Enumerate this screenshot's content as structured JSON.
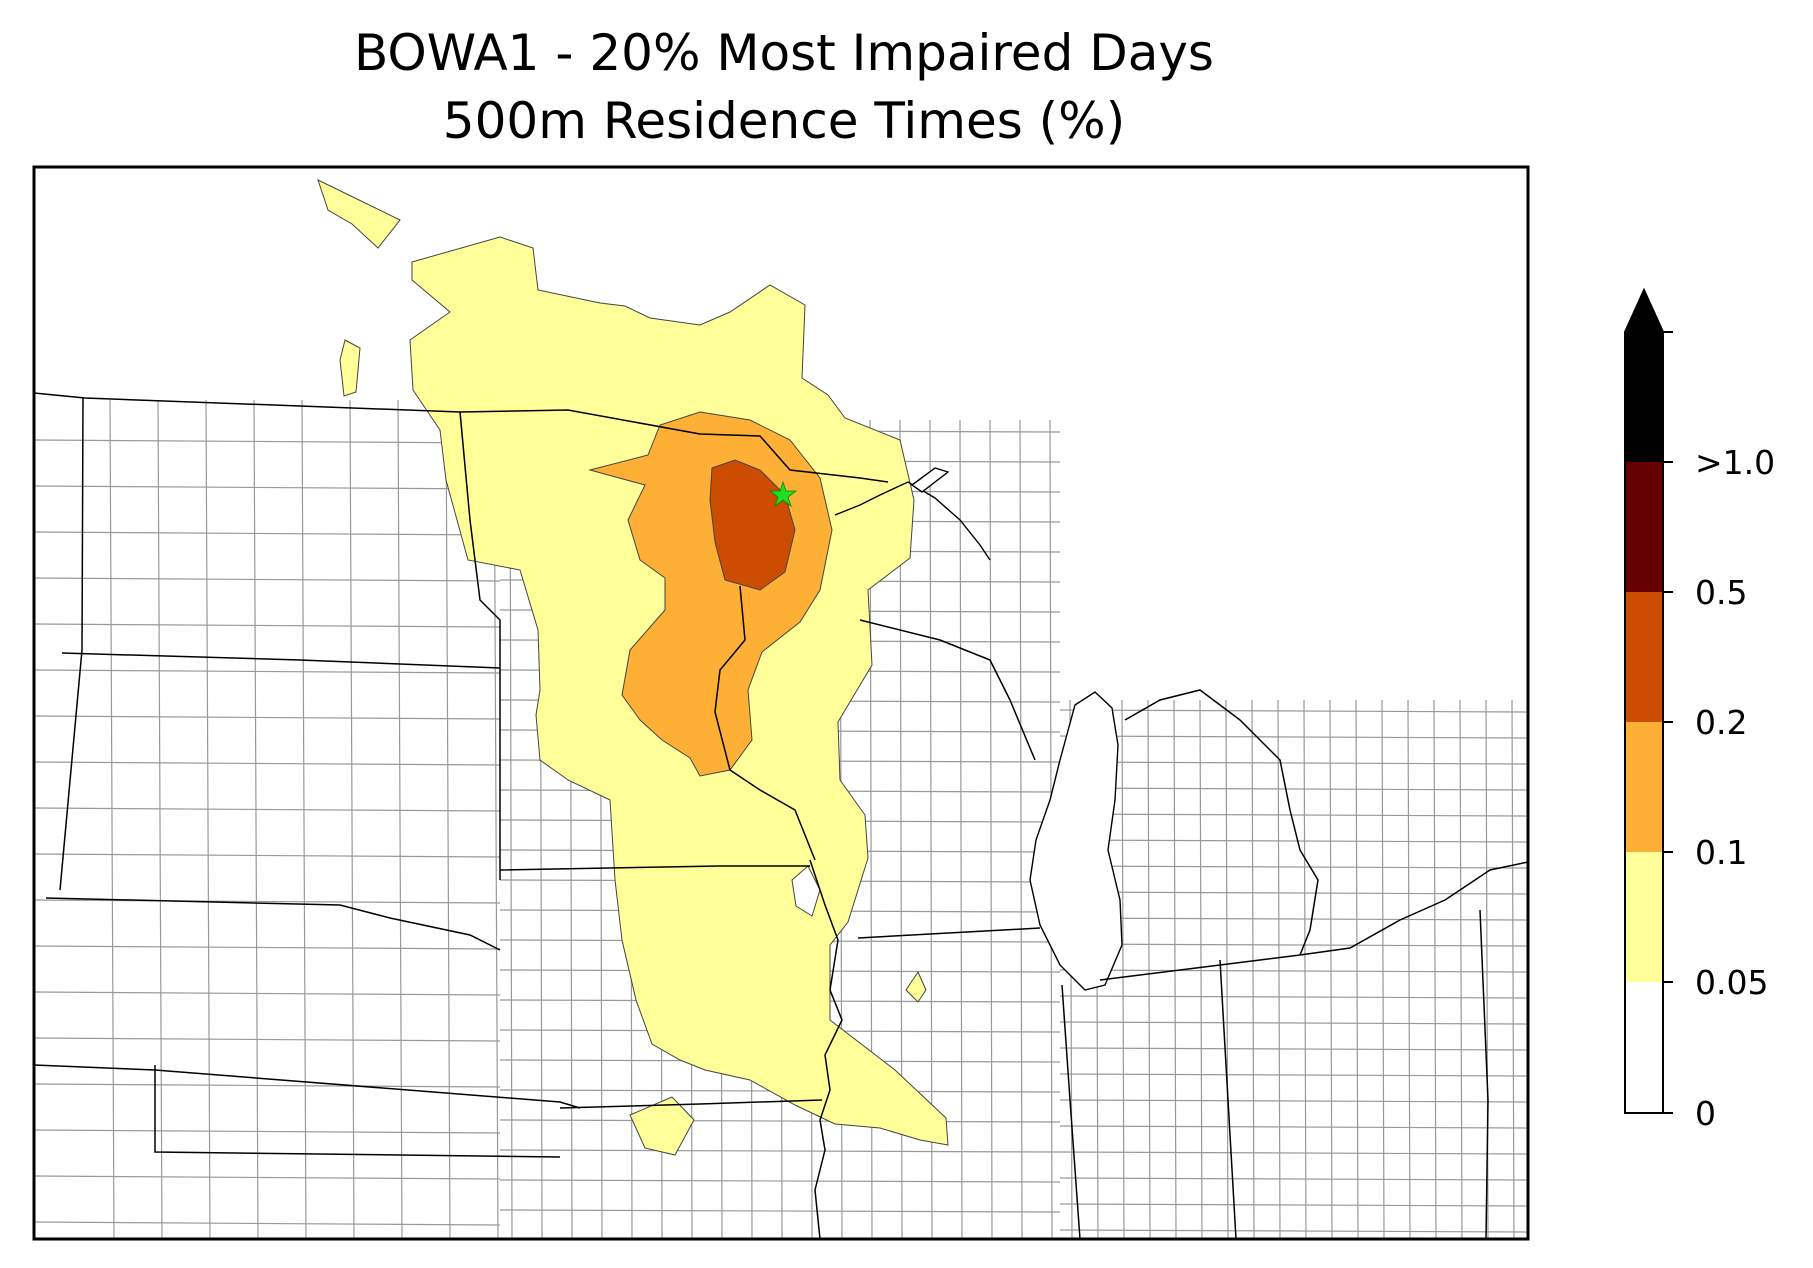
{
  "title": {
    "line1": "BOWA1 - 20% Most Impaired Days",
    "line2": "500m Residence Times (%)"
  },
  "colorbar": {
    "levels": [
      {
        "label": "0",
        "color": "#ffffff"
      },
      {
        "label": "0.05",
        "color": "#ffff99"
      },
      {
        "label": "0.1",
        "color": "#fdb035"
      },
      {
        "label": "0.2",
        "color": "#cc4c02"
      },
      {
        "label": "0.5",
        "color": "#660000"
      },
      {
        "label": ">1.0",
        "color": "#000000"
      }
    ],
    "extend": "max"
  },
  "colors": {
    "contour_005": "#ffff99",
    "contour_01": "#fdb035",
    "contour_02": "#cc4c02",
    "site_marker": "#22dd22",
    "state_border": "#000000",
    "county_border": "#999999"
  },
  "site_marker": {
    "icon": "star-icon"
  }
}
